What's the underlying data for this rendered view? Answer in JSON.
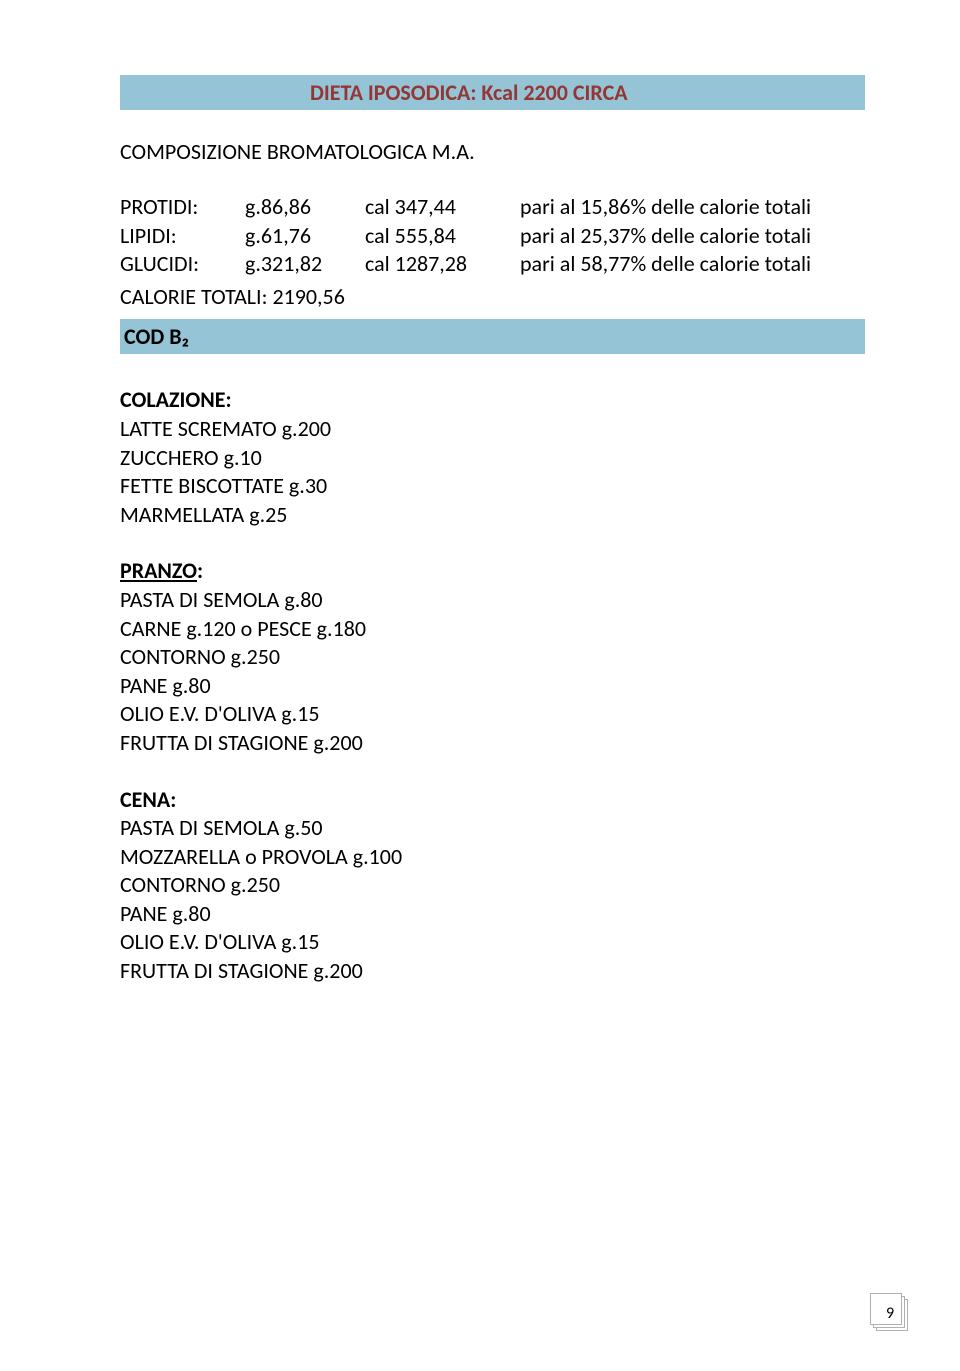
{
  "colors": {
    "banner_bg": "#94c4d6",
    "title_color": "#943634",
    "text_color": "#000000",
    "page_bg": "#ffffff",
    "pagebox_border": "#b0b0b0"
  },
  "title": "DIETA IPOSODICA: Kcal 2200 CIRCA",
  "section_heading": "COMPOSIZIONE BROMATOLOGICA M.A.",
  "composition": [
    {
      "label": "PROTIDI:",
      "grams": "g.86,86",
      "cal": "cal 347,44",
      "note": "pari al 15,86% delle calorie totali"
    },
    {
      "label": "LIPIDI:",
      "grams": "g.61,76",
      "cal": "cal 555,84",
      "note": "pari al 25,37% delle calorie totali"
    },
    {
      "label": "GLUCIDI:",
      "grams": "g.321,82",
      "cal": "cal 1287,28",
      "note": "pari al 58,77% delle calorie totali"
    }
  ],
  "calorie_totali": "CALORIE TOTALI: 2190,56",
  "code": "COD B₂",
  "meals": {
    "colazione": {
      "heading": "COLAZIONE:",
      "items": [
        "LATTE SCREMATO g.200",
        "ZUCCHERO g.10",
        "FETTE BISCOTTATE g.30",
        "MARMELLATA g.25"
      ]
    },
    "pranzo": {
      "heading": "PRANZO",
      "colon": ":",
      "items": [
        "PASTA DI SEMOLA g.80",
        "CARNE g.120 o PESCE g.180",
        "CONTORNO g.250",
        "PANE g.80",
        "OLIO E.V. D'OLIVA g.15",
        "FRUTTA DI STAGIONE g.200"
      ]
    },
    "cena": {
      "heading": "CENA:",
      "items": [
        "PASTA DI SEMOLA g.50",
        "MOZZARELLA o PROVOLA g.100",
        "CONTORNO g.250",
        "PANE g.80",
        "OLIO E.V. D'OLIVA g.15",
        "FRUTTA DI STAGIONE g.200"
      ]
    }
  },
  "page_number": "9"
}
